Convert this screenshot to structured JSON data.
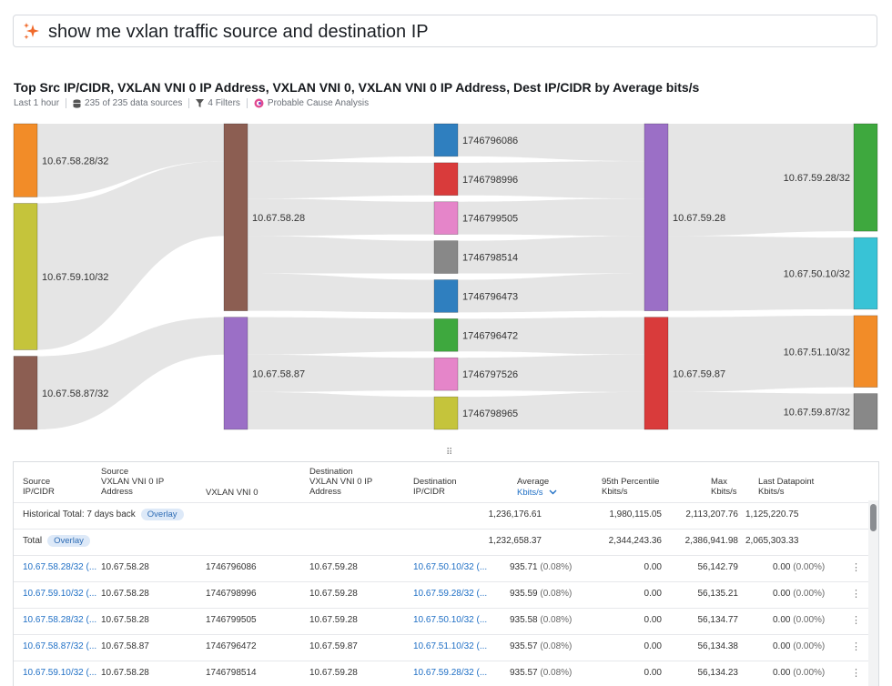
{
  "query": "show me vxlan traffic source and destination IP",
  "chart_title": "Top Src IP/CIDR, VXLAN VNI 0 IP Address, VXLAN VNI 0, VXLAN VNI 0 IP Address, Dest IP/CIDR by Average bits/s",
  "meta": {
    "time_range": "Last 1 hour",
    "data_sources": "235 of 235 data sources",
    "filters": "4 Filters",
    "analysis": "Probable Cause Analysis"
  },
  "chart_data": {
    "type": "sankey",
    "columns": [
      [
        {
          "label": "10.67.58.28/32",
          "color": "#f28c28",
          "value": 1
        },
        {
          "label": "10.67.59.10/32",
          "color": "#c5c43b",
          "value": 2
        },
        {
          "label": "10.67.58.87/32",
          "color": "#8c5e52",
          "value": 1
        }
      ],
      [
        {
          "label": "10.67.58.28",
          "color": "#8c5e52",
          "value": 5
        },
        {
          "label": "10.67.58.87",
          "color": "#9b6fc6",
          "value": 3
        }
      ],
      [
        {
          "label": "1746796086",
          "color": "#2f7fbf",
          "value": 1
        },
        {
          "label": "1746798996",
          "color": "#d93b3b",
          "value": 1
        },
        {
          "label": "1746799505",
          "color": "#e585c9",
          "value": 1
        },
        {
          "label": "1746798514",
          "color": "#888888",
          "value": 1
        },
        {
          "label": "1746796473",
          "color": "#2f7fbf",
          "value": 1
        },
        {
          "label": "1746796472",
          "color": "#3ea83e",
          "value": 1
        },
        {
          "label": "1746797526",
          "color": "#e585c9",
          "value": 1
        },
        {
          "label": "1746798965",
          "color": "#c5c43b",
          "value": 1
        }
      ],
      [
        {
          "label": "10.67.59.28",
          "color": "#9b6fc6",
          "value": 5
        },
        {
          "label": "10.67.59.87",
          "color": "#d93b3b",
          "value": 3
        }
      ],
      [
        {
          "label": "10.67.59.28/32",
          "color": "#3ea83e",
          "value": 3
        },
        {
          "label": "10.67.50.10/32",
          "color": "#38c3d6",
          "value": 2
        },
        {
          "label": "10.67.51.10/32",
          "color": "#f28c28",
          "value": 2
        },
        {
          "label": "10.67.59.87/32",
          "color": "#888888",
          "value": 1
        }
      ]
    ]
  },
  "table": {
    "headers": {
      "src": "Source\nIP/CIDR",
      "src_vni_ip": "Source\nVXLAN VNI 0 IP\nAddress",
      "vni": "VXLAN VNI 0",
      "dst_vni_ip": "Destination\nVXLAN VNI 0 IP\nAddress",
      "dst": "Destination\nIP/CIDR",
      "avg": "Average",
      "avg_unit": "Kbits/s",
      "p95": "95th Percentile\nKbits/s",
      "max": "Max\nKbits/s",
      "last": "Last Datapoint\nKbits/s"
    },
    "historical": {
      "label": "Historical Total: 7 days back",
      "badge": "Overlay",
      "avg": "1,236,176.61",
      "p95": "1,980,115.05",
      "max": "2,113,207.76",
      "last": "1,125,220.75"
    },
    "total": {
      "label": "Total",
      "badge": "Overlay",
      "avg": "1,232,658.37",
      "p95": "2,344,243.36",
      "max": "2,386,941.98",
      "last": "2,065,303.33"
    },
    "rows": [
      {
        "src": "10.67.58.28/32 (...",
        "src_vni_ip": "10.67.58.28",
        "vni": "1746796086",
        "dst_vni_ip": "10.67.59.28",
        "dst": "10.67.50.10/32 (...",
        "avg": "935.71",
        "avg_pct": "(0.08%)",
        "p95": "0.00",
        "max": "56,142.79",
        "last": "0.00",
        "last_pct": "(0.00%)"
      },
      {
        "src": "10.67.59.10/32 (...",
        "src_vni_ip": "10.67.58.28",
        "vni": "1746798996",
        "dst_vni_ip": "10.67.59.28",
        "dst": "10.67.59.28/32 (...",
        "avg": "935.59",
        "avg_pct": "(0.08%)",
        "p95": "0.00",
        "max": "56,135.21",
        "last": "0.00",
        "last_pct": "(0.00%)"
      },
      {
        "src": "10.67.58.28/32 (...",
        "src_vni_ip": "10.67.58.28",
        "vni": "1746799505",
        "dst_vni_ip": "10.67.59.28",
        "dst": "10.67.50.10/32 (...",
        "avg": "935.58",
        "avg_pct": "(0.08%)",
        "p95": "0.00",
        "max": "56,134.77",
        "last": "0.00",
        "last_pct": "(0.00%)"
      },
      {
        "src": "10.67.58.87/32 (...",
        "src_vni_ip": "10.67.58.87",
        "vni": "1746796472",
        "dst_vni_ip": "10.67.59.87",
        "dst": "10.67.51.10/32 (...",
        "avg": "935.57",
        "avg_pct": "(0.08%)",
        "p95": "0.00",
        "max": "56,134.38",
        "last": "0.00",
        "last_pct": "(0.00%)"
      },
      {
        "src": "10.67.59.10/32 (...",
        "src_vni_ip": "10.67.58.28",
        "vni": "1746798514",
        "dst_vni_ip": "10.67.59.28",
        "dst": "10.67.59.28/32 (...",
        "avg": "935.57",
        "avg_pct": "(0.08%)",
        "p95": "0.00",
        "max": "56,134.23",
        "last": "0.00",
        "last_pct": "(0.00%)"
      }
    ]
  }
}
